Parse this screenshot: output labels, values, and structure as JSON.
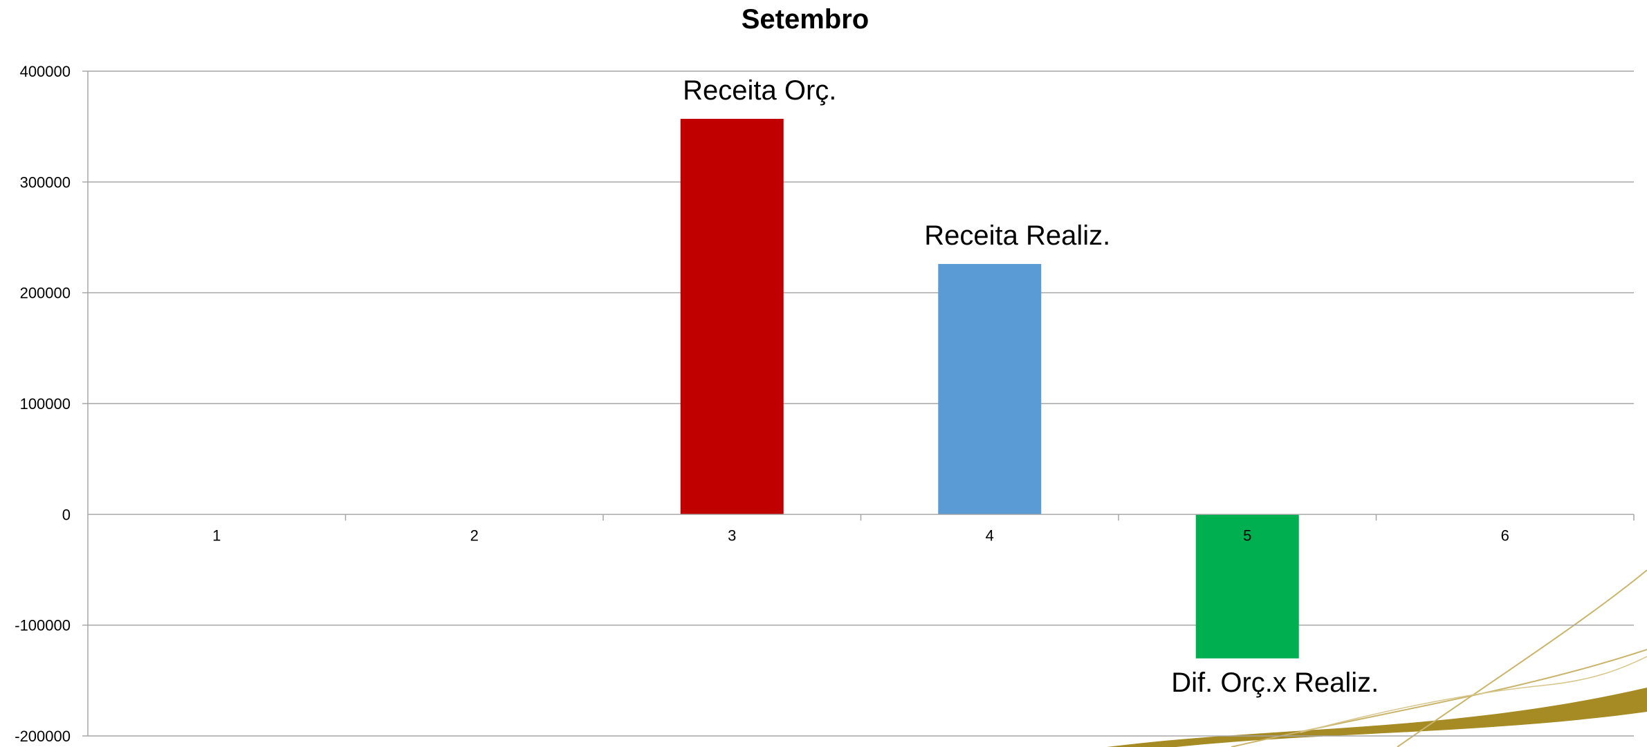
{
  "chart_data": {
    "type": "bar",
    "title": "Setembro",
    "categories": [
      "1",
      "2",
      "3",
      "4",
      "5",
      "6"
    ],
    "values": [
      0,
      0,
      357000,
      226000,
      -130000,
      0
    ],
    "bar_colors": [
      "#c00000",
      "#c00000",
      "#c00000",
      "#5b9bd5",
      "#00b050",
      "#c00000"
    ],
    "ylim": [
      -200000,
      400000
    ],
    "yticks": [
      "400000",
      "300000",
      "200000",
      "100000",
      "0",
      "-100000",
      "-200000"
    ],
    "grid": true,
    "annotations": [
      {
        "text": "Receita Orç.",
        "category": "3"
      },
      {
        "text": "Receita Realiz.",
        "category": "4"
      },
      {
        "text": "Dif. Orç.x Realiz.",
        "category": "5"
      }
    ],
    "xlabel": "",
    "ylabel": ""
  },
  "colors": {
    "grid": "#a6a6a6",
    "axis": "#a6a6a6",
    "decoration": "#a68a24"
  }
}
